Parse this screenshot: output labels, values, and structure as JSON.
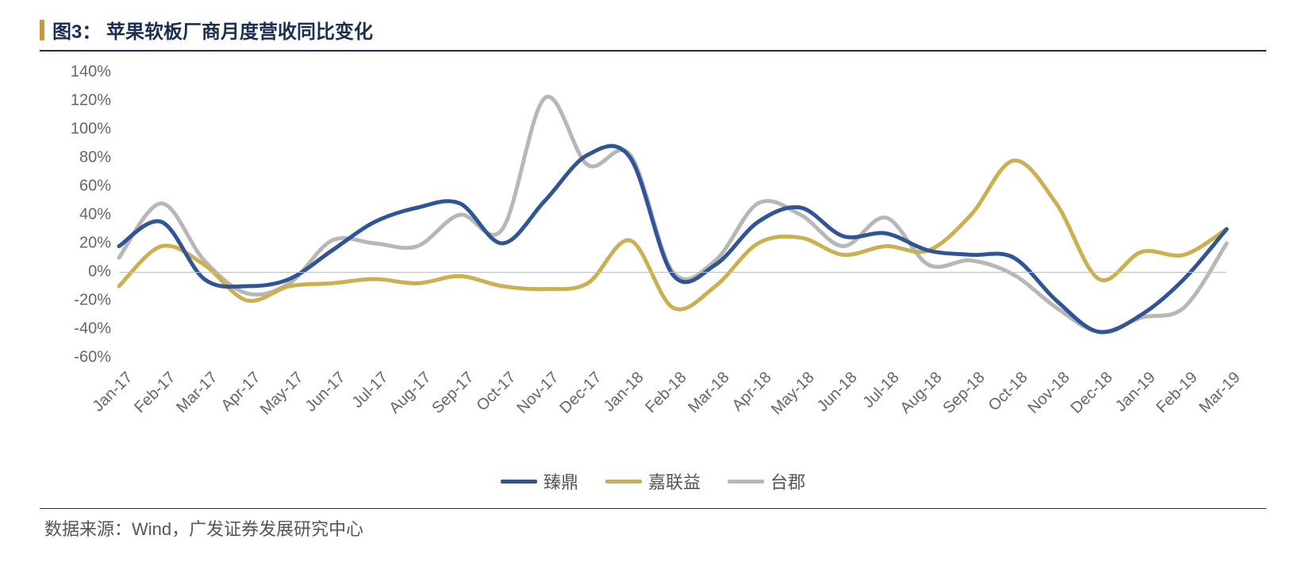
{
  "title_prefix": "图3：",
  "title_text": "苹果软板厂商月度营收同比变化",
  "source_text": "数据来源：Wind，广发证券发展研究中心",
  "chart": {
    "type": "line",
    "background_color": "#ffffff",
    "axis_color": "#bfbfbf",
    "tick_color": "#666666",
    "tick_fontsize": 20,
    "title_color": "#1a2f52",
    "title_fontsize": 24,
    "accent_bar_color": "#c39a3b",
    "ylim": [
      -60,
      140
    ],
    "ytick_step": 20,
    "ytick_suffix": "%",
    "line_width": 5,
    "categories": [
      "Jan-17",
      "Feb-17",
      "Mar-17",
      "Apr-17",
      "May-17",
      "Jun-17",
      "Jul-17",
      "Aug-17",
      "Sep-17",
      "Oct-17",
      "Nov-17",
      "Dec-17",
      "Jan-18",
      "Feb-18",
      "Mar-18",
      "Apr-18",
      "May-18",
      "Jun-18",
      "Jul-18",
      "Aug-18",
      "Sep-18",
      "Oct-18",
      "Nov-18",
      "Dec-18",
      "Jan-19",
      "Feb-19",
      "Mar-19"
    ],
    "series": [
      {
        "name": "臻鼎",
        "color": "#2f5597",
        "values": [
          18,
          35,
          -5,
          -10,
          -5,
          15,
          35,
          45,
          48,
          20,
          50,
          82,
          80,
          -2,
          5,
          35,
          45,
          25,
          27,
          15,
          12,
          10,
          -20,
          -42,
          -30,
          -5,
          30
        ]
      },
      {
        "name": "嘉联益",
        "color": "#cbb052",
        "values": [
          -10,
          18,
          5,
          -20,
          -10,
          -8,
          -5,
          -8,
          -3,
          -10,
          -12,
          -8,
          22,
          -25,
          -10,
          20,
          24,
          12,
          18,
          15,
          40,
          78,
          48,
          -5,
          14,
          12,
          30
        ]
      },
      {
        "name": "台郡",
        "color": "#b7b7b7",
        "values": [
          10,
          48,
          8,
          -15,
          -8,
          22,
          20,
          18,
          40,
          30,
          122,
          75,
          82,
          0,
          8,
          48,
          40,
          18,
          38,
          5,
          8,
          -2,
          -25,
          -42,
          -32,
          -25,
          20
        ]
      }
    ]
  }
}
